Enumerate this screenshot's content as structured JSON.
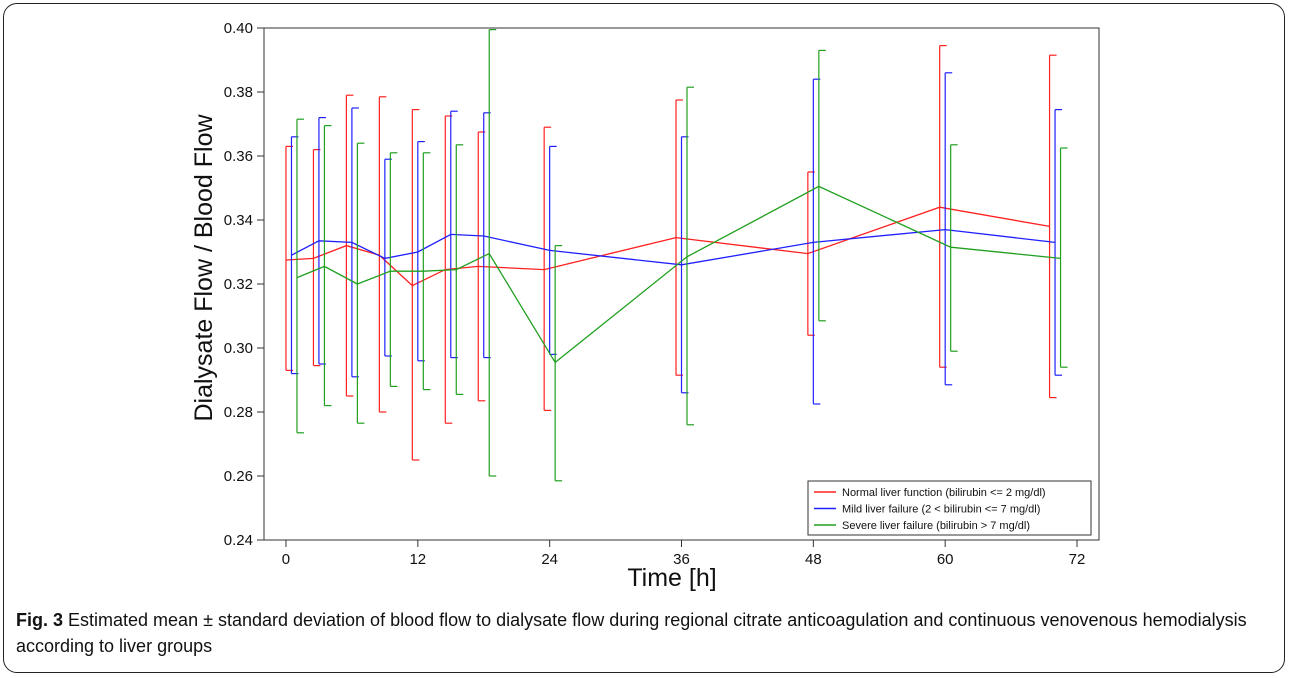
{
  "chart_data": {
    "type": "line",
    "xlabel": "Time [h]",
    "ylabel": "Dialysate Flow / Blood Flow",
    "xlim": [
      -2,
      74
    ],
    "ylim": [
      0.24,
      0.4
    ],
    "xticks": [
      0,
      12,
      24,
      36,
      48,
      60,
      72
    ],
    "yticks": [
      0.24,
      0.26,
      0.28,
      0.3,
      0.32,
      0.34,
      0.36,
      0.38,
      0.4
    ],
    "ytick_labels": [
      "0.24",
      "0.26",
      "0.28",
      "0.30",
      "0.32",
      "0.34",
      "0.36",
      "0.38",
      "0.40"
    ],
    "grid": false,
    "legend_position": "bottom-right",
    "series": [
      {
        "name": "Normal liver function (bilirubin <= 2 mg/dl)",
        "color": "#ff2020",
        "x": [
          0,
          2.5,
          5.5,
          8.5,
          11.5,
          14.5,
          17.5,
          23.5,
          35.5,
          47.5,
          59.5,
          69.5
        ],
        "y": [
          0.3275,
          0.328,
          0.332,
          0.329,
          0.3195,
          0.3245,
          0.3255,
          0.3245,
          0.3345,
          0.3295,
          0.344,
          0.338
        ],
        "upper": [
          0.363,
          0.362,
          0.379,
          0.3785,
          0.3745,
          0.3725,
          0.3675,
          0.369,
          0.3775,
          0.355,
          0.3945,
          0.3915
        ],
        "lower": [
          0.293,
          0.2945,
          0.285,
          0.28,
          0.265,
          0.2765,
          0.2835,
          0.2805,
          0.2915,
          0.304,
          0.294,
          0.2845
        ]
      },
      {
        "name": "Mild liver failure (2 < bilirubin <= 7 mg/dl)",
        "color": "#2020ff",
        "x": [
          0.5,
          3,
          6,
          9,
          12,
          15,
          18,
          24,
          36,
          48,
          60,
          70
        ],
        "y": [
          0.329,
          0.3335,
          0.333,
          0.328,
          0.33,
          0.3355,
          0.335,
          0.3305,
          0.326,
          0.333,
          0.337,
          0.333
        ],
        "upper": [
          0.366,
          0.372,
          0.375,
          0.359,
          0.3645,
          0.374,
          0.3735,
          0.363,
          0.366,
          0.384,
          0.386,
          0.3745
        ],
        "lower": [
          0.292,
          0.295,
          0.291,
          0.2975,
          0.296,
          0.297,
          0.297,
          0.298,
          0.286,
          0.2825,
          0.2885,
          0.2915
        ]
      },
      {
        "name": "Severe liver failure (bilirubin > 7 mg/dl)",
        "color": "#20a020",
        "x": [
          1,
          3.5,
          6.5,
          9.5,
          12.5,
          15.5,
          18.5,
          24.5,
          36.5,
          48.5,
          60.5,
          70.5
        ],
        "y": [
          0.322,
          0.3255,
          0.32,
          0.324,
          0.324,
          0.3245,
          0.3295,
          0.2955,
          0.3285,
          0.3505,
          0.3315,
          0.328
        ],
        "upper": [
          0.3715,
          0.3695,
          0.364,
          0.361,
          0.361,
          0.3635,
          0.3995,
          0.332,
          0.3815,
          0.393,
          0.3635,
          0.3625
        ],
        "lower": [
          0.2735,
          0.282,
          0.2765,
          0.288,
          0.287,
          0.2855,
          0.26,
          0.2585,
          0.276,
          0.3085,
          0.299,
          0.294
        ]
      }
    ]
  },
  "caption": {
    "label": "Fig. 3",
    "text": " Estimated mean ± standard deviation of blood flow to dialysate flow during regional citrate anticoagulation and continuous venovenous hemodialysis according to liver groups"
  }
}
